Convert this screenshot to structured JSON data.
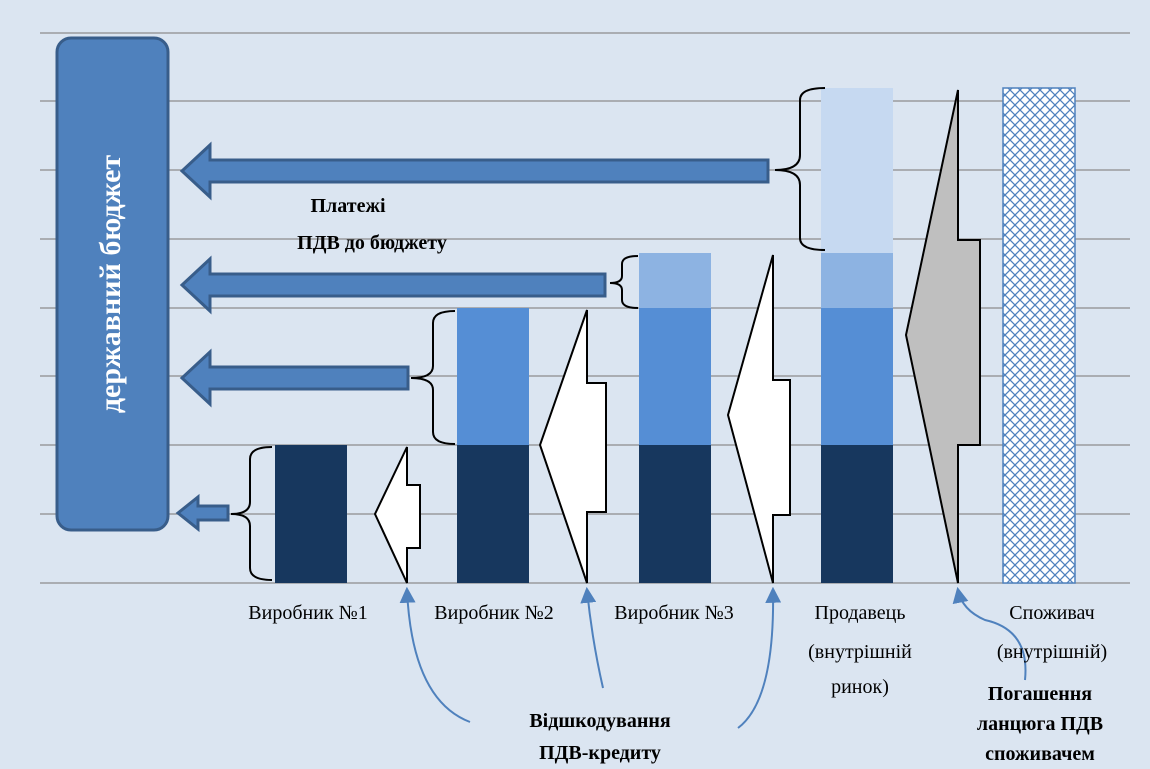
{
  "budget": "державний бюджет",
  "payments_label": [
    "Платежі",
    "ПДВ до бюджету"
  ],
  "participants": [
    [
      "Виробник №1"
    ],
    [
      "Виробник №2"
    ],
    [
      "Виробник №3"
    ],
    [
      "Продавець",
      "(внутрішній",
      "ринок)"
    ],
    [
      "Споживач",
      "(внутрішній)"
    ]
  ],
  "refund_label": [
    "Відшкодування",
    "ПДВ-кредиту"
  ],
  "repayment_label": [
    "Погашення",
    "ланцюга ПДВ",
    "споживачем"
  ]
}
